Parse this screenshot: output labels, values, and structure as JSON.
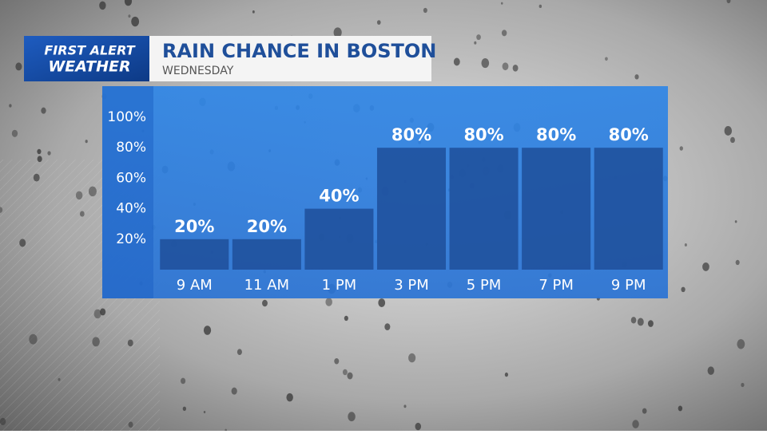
{
  "logo": {
    "line1": "FIRST ALERT",
    "line2": "WEATHER"
  },
  "chart_data": {
    "type": "bar",
    "title": "RAIN CHANCE IN BOSTON",
    "subtitle": "WEDNESDAY",
    "categories": [
      "9 AM",
      "11 AM",
      "1 PM",
      "3 PM",
      "5 PM",
      "7 PM",
      "9 PM"
    ],
    "values": [
      20,
      20,
      40,
      80,
      80,
      80,
      80
    ],
    "value_labels": [
      "20%",
      "20%",
      "40%",
      "80%",
      "80%",
      "80%",
      "80%"
    ],
    "color": "#1f4f9a",
    "ylim": [
      0,
      100
    ],
    "yticks": [
      {
        "value": 20,
        "label": "20%"
      },
      {
        "value": 40,
        "label": "40%"
      },
      {
        "value": 60,
        "label": "60%"
      },
      {
        "value": 80,
        "label": "80%"
      },
      {
        "value": 100,
        "label": "100%"
      }
    ],
    "grid": false
  }
}
